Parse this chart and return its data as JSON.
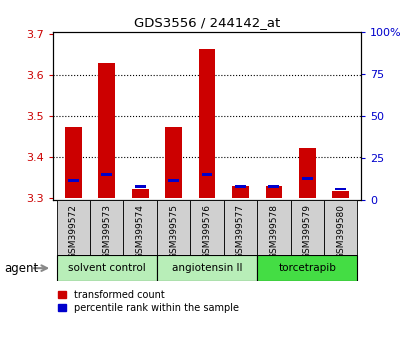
{
  "title": "GDS3556 / 244142_at",
  "samples": [
    "GSM399572",
    "GSM399573",
    "GSM399574",
    "GSM399575",
    "GSM399576",
    "GSM399577",
    "GSM399578",
    "GSM399579",
    "GSM399580"
  ],
  "red_tops": [
    3.473,
    3.63,
    3.322,
    3.473,
    3.662,
    3.33,
    3.33,
    3.423,
    3.318
  ],
  "blue_tops": [
    3.342,
    3.358,
    3.328,
    3.342,
    3.358,
    3.328,
    3.328,
    3.348,
    3.322
  ],
  "bar_base": 3.3,
  "ylim_left": [
    3.295,
    3.705
  ],
  "ylim_right": [
    0,
    100
  ],
  "yticks_left": [
    3.3,
    3.4,
    3.5,
    3.6,
    3.7
  ],
  "yticks_right": [
    0,
    25,
    50,
    75,
    100
  ],
  "ytick_right_labels": [
    "0",
    "25",
    "50",
    "75",
    "100%"
  ],
  "group_labels": [
    "solvent control",
    "angiotensin II",
    "torcetrapib"
  ],
  "group_starts": [
    0,
    3,
    6
  ],
  "group_ends": [
    3,
    6,
    9
  ],
  "group_colors": [
    "#b8eeb8",
    "#b8eeb8",
    "#44dd44"
  ],
  "red_color": "#CC0000",
  "blue_color": "#0000CC",
  "bar_width": 0.5,
  "agent_label": "agent",
  "legend_red": "transformed count",
  "legend_blue": "percentile rank within the sample",
  "tick_label_color_left": "#CC0000",
  "tick_label_color_right": "#0000CC",
  "grid_dotted_levels": [
    3.4,
    3.5,
    3.6
  ],
  "sample_box_color": "#d0d0d0"
}
